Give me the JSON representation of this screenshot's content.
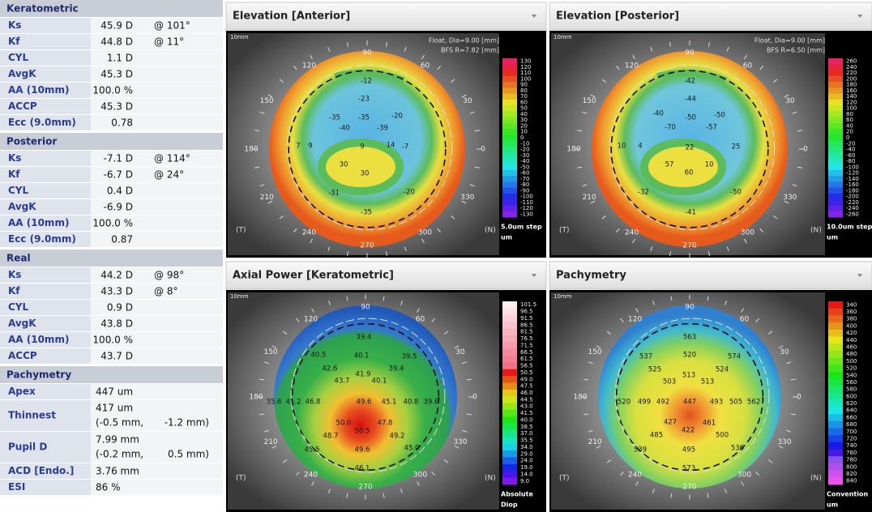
{
  "sidebar": {
    "sections": [
      {
        "title": "Keratometric",
        "rows": [
          {
            "label": "Ks",
            "lines": [
              [
                "45.9 D",
                "@ 101°"
              ]
            ]
          },
          {
            "label": "Kf",
            "lines": [
              [
                "44.8 D",
                "@ 11°"
              ]
            ]
          },
          {
            "label": "CYL",
            "lines": [
              [
                "1.1 D"
              ]
            ]
          },
          {
            "label": "AvgK",
            "lines": [
              [
                "45.3 D"
              ]
            ]
          },
          {
            "label": "AA (10mm)",
            "lines": [
              [
                "100.0 %"
              ]
            ]
          },
          {
            "label": "ACCP",
            "lines": [
              [
                "45.3 D"
              ]
            ]
          },
          {
            "label": "Ecc (9.0mm)",
            "lines": [
              [
                "0.78"
              ]
            ]
          }
        ]
      },
      {
        "title": "Posterior",
        "rows": [
          {
            "label": "Ks",
            "lines": [
              [
                "-7.1 D",
                "@ 114°"
              ]
            ]
          },
          {
            "label": "Kf",
            "lines": [
              [
                "-6.7 D",
                "@ 24°"
              ]
            ]
          },
          {
            "label": "CYL",
            "lines": [
              [
                "0.4 D"
              ]
            ]
          },
          {
            "label": "AvgK",
            "lines": [
              [
                "-6.9 D"
              ]
            ]
          },
          {
            "label": "AA (10mm)",
            "lines": [
              [
                "100.0 %"
              ]
            ]
          },
          {
            "label": "Ecc (9.0mm)",
            "lines": [
              [
                "0.87"
              ]
            ]
          }
        ]
      },
      {
        "title": "Real",
        "rows": [
          {
            "label": "Ks",
            "lines": [
              [
                "44.2 D",
                "@ 98°"
              ]
            ]
          },
          {
            "label": "Kf",
            "lines": [
              [
                "43.3 D",
                "@ 8°"
              ]
            ]
          },
          {
            "label": "CYL",
            "lines": [
              [
                "0.9 D"
              ]
            ]
          },
          {
            "label": "AvgK",
            "lines": [
              [
                "43.8 D"
              ]
            ]
          },
          {
            "label": "AA (10mm)",
            "lines": [
              [
                "100.0 %"
              ]
            ]
          },
          {
            "label": "ACCP",
            "lines": [
              [
                "43.7 D"
              ]
            ]
          }
        ]
      },
      {
        "title": "Pachymetry",
        "rows": [
          {
            "label": "Apex",
            "lines": [
              [
                "447 um"
              ]
            ]
          },
          {
            "label": "Thinnest",
            "lines": [
              [
                "417 um"
              ],
              [
                "(-0.5 mm,",
                "-1.2 mm)"
              ]
            ]
          },
          {
            "label": "Pupil D",
            "lines": [
              [
                "7.99 mm"
              ],
              [
                "(-0.2 mm,",
                "0.5 mm)"
              ]
            ]
          },
          {
            "label": "ACD [Endo.]",
            "lines": [
              [
                "3.76 mm"
              ]
            ]
          },
          {
            "label": "ESI",
            "lines": [
              [
                "86 %"
              ]
            ]
          }
        ]
      }
    ]
  },
  "panels": [
    {
      "title": "Elevation [Anterior]",
      "corner": "10mm",
      "info": [
        "Float, Dia=9.00 [mm]",
        "BFS R=7.82 [mm]"
      ],
      "angles": [
        0,
        30,
        60,
        90,
        120,
        150,
        180,
        210,
        240,
        270,
        300,
        330
      ],
      "side_left": "(T)",
      "side_right": "(N)",
      "scale": [
        "130",
        "120",
        "110",
        "100",
        "90",
        "80",
        "70",
        "60",
        "50",
        "40",
        "30",
        "20",
        "10",
        "0",
        "-10",
        "-20",
        "-30",
        "-40",
        "-50",
        "-60",
        "-70",
        "-80",
        "-90",
        "-100",
        "-110",
        "-120",
        "-130"
      ],
      "scale_footer": [
        "5.0um step",
        "um"
      ],
      "values": [
        "-12",
        "-23",
        "-35",
        "-35",
        "-20",
        "-40",
        "-39",
        "7",
        "9",
        "9",
        "14",
        "30",
        "30",
        "-7",
        "-20",
        "-31",
        "-35"
      ]
    },
    {
      "title": "Elevation [Posterior]",
      "corner": "10mm",
      "info": [
        "Float, Dia=9.00 [mm]",
        "BFS R=6.50 [mm]"
      ],
      "angles": [
        0,
        30,
        60,
        90,
        120,
        150,
        180,
        210,
        240,
        270,
        300,
        330
      ],
      "side_left": "(T)",
      "side_right": "(N)",
      "scale": [
        "260",
        "240",
        "220",
        "200",
        "180",
        "160",
        "140",
        "120",
        "100",
        "80",
        "60",
        "40",
        "20",
        "0",
        "-20",
        "-40",
        "-60",
        "-80",
        "-100",
        "-120",
        "-140",
        "-160",
        "-180",
        "-200",
        "-220",
        "-240",
        "-260"
      ],
      "scale_footer": [
        "10.0um step",
        "um"
      ],
      "values": [
        "-42",
        "-44",
        "-40",
        "-50",
        "-50",
        "-70",
        "-57",
        "10",
        "4",
        "22",
        "25",
        "57",
        "60",
        "10",
        "-32",
        "-41",
        "-50"
      ]
    },
    {
      "title": "Axial Power [Keratometric]",
      "corner": "10mm",
      "angles": [
        0,
        30,
        60,
        90,
        120,
        150,
        180,
        210,
        240,
        270,
        300,
        330
      ],
      "side_left": "(T)",
      "side_right": "(N)",
      "scale": [
        "101.5",
        "96.5",
        "91.5",
        "86.5",
        "81.5",
        "76.5",
        "71.5",
        "66.5",
        "61.5",
        "56.5",
        "50.5",
        "49.0",
        "47.5",
        "46.0",
        "44.5",
        "43.0",
        "41.5",
        "40.0",
        "38.5",
        "37.0",
        "35.5",
        "34.0",
        "29.0",
        "24.0",
        "19.0",
        "14.0",
        "9.0"
      ],
      "scale_footer": [
        "Absolute",
        "Diop"
      ],
      "values": [
        "39.4",
        "40.5",
        "40.1",
        "39.5",
        "42.6",
        "41.9",
        "39.4",
        "43.7",
        "40.1",
        "35.6",
        "41.2",
        "46.8",
        "49.6",
        "45.1",
        "40.8",
        "39.6",
        "50.0",
        "47.8",
        "50.5",
        "48.7",
        "49.2",
        "45.5",
        "49.6",
        "45.0",
        "46.1"
      ]
    },
    {
      "title": "Pachymetry",
      "corner": "10mm",
      "angles": [
        0,
        30,
        60,
        90,
        120,
        150,
        180,
        210,
        240,
        270,
        300,
        330
      ],
      "side_left": "(T)",
      "side_right": "(N)",
      "scale": [
        "340",
        "360",
        "380",
        "400",
        "420",
        "440",
        "460",
        "480",
        "500",
        "520",
        "540",
        "560",
        "580",
        "600",
        "620",
        "640",
        "660",
        "680",
        "700",
        "720",
        "740",
        "760",
        "780",
        "800",
        "820",
        "840"
      ],
      "scale_footer": [
        "Convention",
        "um"
      ],
      "values": [
        "563",
        "537",
        "520",
        "574",
        "525",
        "513",
        "524",
        "503",
        "513",
        "520",
        "499",
        "492",
        "447",
        "493",
        "505",
        "562",
        "427",
        "461",
        "422",
        "485",
        "500",
        "539",
        "495",
        "536",
        "573"
      ]
    }
  ]
}
